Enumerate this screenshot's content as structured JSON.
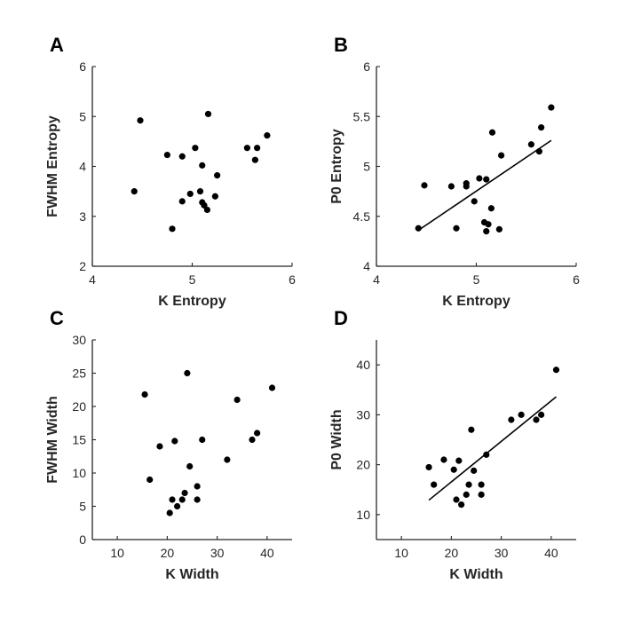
{
  "colors": {
    "axis": "#262626",
    "marker": "#000000",
    "background": "#ffffff"
  },
  "chart_data": [
    {
      "panel": "A",
      "type": "scatter",
      "xlabel": "K Entropy",
      "ylabel": "FWHM Entropy",
      "xlim": [
        4,
        6
      ],
      "ylim": [
        2,
        6
      ],
      "xticks": [
        4,
        5,
        6
      ],
      "yticks": [
        2,
        3,
        4,
        5,
        6
      ],
      "x": [
        4.42,
        4.48,
        4.75,
        4.8,
        4.9,
        4.9,
        4.98,
        5.03,
        5.08,
        5.1,
        5.1,
        5.12,
        5.15,
        5.16,
        5.23,
        5.25,
        5.55,
        5.63,
        5.65,
        5.75
      ],
      "y": [
        3.5,
        4.92,
        4.23,
        2.75,
        3.3,
        4.2,
        3.45,
        4.37,
        3.5,
        3.28,
        4.02,
        3.22,
        3.13,
        5.05,
        3.4,
        3.82,
        4.37,
        4.13,
        4.37,
        4.62
      ],
      "fit": null
    },
    {
      "panel": "B",
      "type": "scatter",
      "xlabel": "K Entropy",
      "ylabel": "P0 Entropy",
      "xlim": [
        4,
        6
      ],
      "ylim": [
        4,
        6
      ],
      "xticks": [
        4,
        5,
        6
      ],
      "yticks": [
        4,
        4.5,
        5,
        5.5,
        6
      ],
      "x": [
        4.42,
        4.48,
        4.75,
        4.8,
        4.9,
        4.9,
        4.98,
        5.03,
        5.08,
        5.1,
        5.1,
        5.12,
        5.15,
        5.16,
        5.23,
        5.25,
        5.55,
        5.63,
        5.65,
        5.75
      ],
      "y": [
        4.38,
        4.81,
        4.8,
        4.38,
        4.8,
        4.83,
        4.65,
        4.88,
        4.44,
        4.87,
        4.35,
        4.42,
        4.58,
        5.34,
        4.37,
        5.11,
        5.22,
        5.15,
        5.39,
        5.59
      ],
      "fit": {
        "x": [
          4.42,
          5.75
        ],
        "y": [
          4.36,
          5.26
        ]
      }
    },
    {
      "panel": "C",
      "type": "scatter",
      "xlabel": "K Width",
      "ylabel": "FWHM Width",
      "xlim": [
        5,
        45
      ],
      "ylim": [
        0,
        30
      ],
      "xticks": [
        10,
        20,
        30,
        40
      ],
      "yticks": [
        0,
        5,
        10,
        15,
        20,
        25,
        30
      ],
      "x": [
        15.5,
        16.5,
        18.5,
        20.5,
        21,
        21.5,
        22,
        23,
        23.5,
        24,
        24.5,
        26,
        26,
        27,
        32,
        34,
        37,
        38,
        41
      ],
      "y": [
        21.8,
        9.0,
        14.0,
        4.0,
        6.0,
        14.8,
        5.0,
        6.0,
        7.0,
        25.0,
        11.0,
        8.0,
        6.0,
        15.0,
        12.0,
        21.0,
        15.0,
        16.0,
        22.8
      ],
      "fit": null
    },
    {
      "panel": "D",
      "type": "scatter",
      "xlabel": "K Width",
      "ylabel": "P0 Width",
      "xlim": [
        5,
        45
      ],
      "ylim": [
        5,
        45
      ],
      "xticks": [
        10,
        20,
        30,
        40
      ],
      "yticks": [
        10,
        20,
        30,
        40
      ],
      "x": [
        15.5,
        16.5,
        18.5,
        20.5,
        21,
        21.5,
        22,
        23,
        23.5,
        24,
        24.5,
        26,
        26,
        27,
        32,
        34,
        37,
        38,
        41
      ],
      "y": [
        19.5,
        16.0,
        21.0,
        19.0,
        13.0,
        20.8,
        12.0,
        14.0,
        16.0,
        27.0,
        18.8,
        16.0,
        14.0,
        22.0,
        29.0,
        30.0,
        29.0,
        30.0,
        39.0
      ],
      "fit": {
        "x": [
          15.5,
          41
        ],
        "y": [
          12.9,
          33.6
        ]
      }
    }
  ]
}
